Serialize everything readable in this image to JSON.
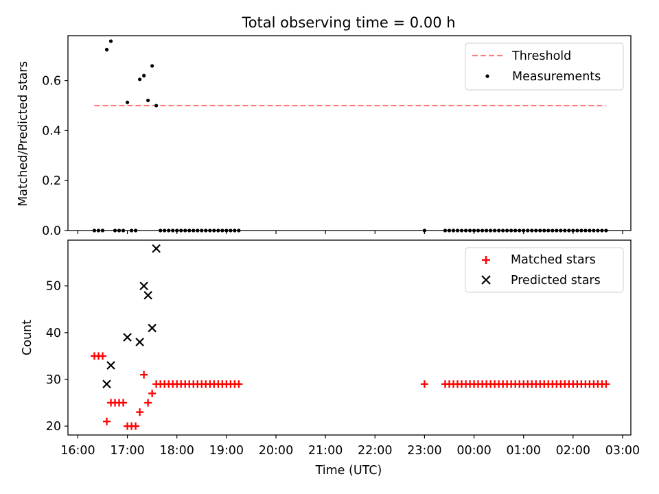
{
  "figure": {
    "title": "Total observing time = 0.00 h"
  },
  "chart_data": [
    {
      "type": "scatter",
      "panel": "top",
      "ylabel": "Matched/Predicted stars",
      "xlabel": "",
      "ylim": [
        0,
        0.78
      ],
      "yticks": [
        0.0,
        0.2,
        0.4,
        0.6
      ],
      "ytick_labels": [
        "0.0",
        "0.2",
        "0.4",
        "0.6"
      ],
      "grid": false,
      "legend_placement": "upper right",
      "colors": {
        "threshold": "#ff7f7f",
        "measurements": "#000000"
      },
      "threshold": {
        "name": "Threshold",
        "y": 0.5,
        "x_range": [
          "16:20",
          "26:40"
        ]
      },
      "series": [
        {
          "name": "Measurements",
          "x": [
            "16:20",
            "16:25",
            "16:30",
            "16:45",
            "16:50",
            "16:55",
            "17:05",
            "17:10",
            "17:40",
            "17:45",
            "17:50",
            "17:55",
            "18:00",
            "18:05",
            "18:10",
            "18:15",
            "18:20",
            "18:25",
            "18:30",
            "18:35",
            "18:40",
            "18:45",
            "18:50",
            "18:55",
            "19:00",
            "19:05",
            "19:10",
            "19:15",
            "23:00",
            "23:25",
            "23:30",
            "23:35",
            "23:40",
            "23:45",
            "23:50",
            "23:55",
            "24:00",
            "24:05",
            "24:10",
            "24:15",
            "24:20",
            "24:25",
            "24:30",
            "24:35",
            "24:40",
            "24:45",
            "24:50",
            "24:55",
            "25:00",
            "25:05",
            "25:10",
            "25:15",
            "25:20",
            "25:25",
            "25:30",
            "25:35",
            "25:40",
            "25:45",
            "25:50",
            "25:55",
            "26:00",
            "26:05",
            "26:10",
            "26:15",
            "26:20",
            "26:25",
            "26:30",
            "26:35",
            "26:40",
            "16:35",
            "16:40",
            "17:00",
            "17:15",
            "17:20",
            "17:25",
            "17:30",
            "17:35"
          ],
          "y": [
            0,
            0,
            0,
            0,
            0,
            0,
            0,
            0,
            0,
            0,
            0,
            0,
            0,
            0,
            0,
            0,
            0,
            0,
            0,
            0,
            0,
            0,
            0,
            0,
            0,
            0,
            0,
            0,
            0,
            0,
            0,
            0,
            0,
            0,
            0,
            0,
            0,
            0,
            0,
            0,
            0,
            0,
            0,
            0,
            0,
            0,
            0,
            0,
            0,
            0,
            0,
            0,
            0,
            0,
            0,
            0,
            0,
            0,
            0,
            0,
            0,
            0,
            0,
            0,
            0,
            0,
            0,
            0,
            0,
            0.724,
            0.758,
            0.513,
            0.605,
            0.62,
            0.521,
            0.659,
            0.5
          ]
        }
      ]
    },
    {
      "type": "scatter",
      "panel": "bottom",
      "ylabel": "Count",
      "xlabel": "Time (UTC)",
      "ylim": [
        18.1,
        59.8
      ],
      "yticks": [
        20,
        30,
        40,
        50
      ],
      "ytick_labels": [
        "20",
        "30",
        "40",
        "50"
      ],
      "x_range": [
        "15:48",
        "27:10"
      ],
      "xticks": [
        "16:00",
        "17:00",
        "18:00",
        "19:00",
        "20:00",
        "21:00",
        "22:00",
        "23:00",
        "24:00",
        "25:00",
        "26:00",
        "27:00"
      ],
      "xtick_labels": [
        "16:00",
        "17:00",
        "18:00",
        "19:00",
        "20:00",
        "21:00",
        "22:00",
        "23:00",
        "00:00",
        "01:00",
        "02:00",
        "03:00"
      ],
      "grid": false,
      "legend_placement": "upper right",
      "colors": {
        "matched": "#ff0000",
        "predicted": "#000000"
      },
      "series": [
        {
          "name": "Matched stars",
          "x": [
            "16:20",
            "16:25",
            "16:30",
            "16:35",
            "16:40",
            "16:45",
            "16:50",
            "16:55",
            "17:00",
            "17:05",
            "17:10",
            "17:15",
            "17:20",
            "17:25",
            "17:30",
            "17:35",
            "17:40",
            "17:45",
            "17:50",
            "17:55",
            "18:00",
            "18:05",
            "18:10",
            "18:15",
            "18:20",
            "18:25",
            "18:30",
            "18:35",
            "18:40",
            "18:45",
            "18:50",
            "18:55",
            "19:00",
            "19:05",
            "19:10",
            "19:15",
            "23:00",
            "23:25",
            "23:30",
            "23:35",
            "23:40",
            "23:45",
            "23:50",
            "23:55",
            "24:00",
            "24:05",
            "24:10",
            "24:15",
            "24:20",
            "24:25",
            "24:30",
            "24:35",
            "24:40",
            "24:45",
            "24:50",
            "24:55",
            "25:00",
            "25:05",
            "25:10",
            "25:15",
            "25:20",
            "25:25",
            "25:30",
            "25:35",
            "25:40",
            "25:45",
            "25:50",
            "25:55",
            "26:00",
            "26:05",
            "26:10",
            "26:15",
            "26:20",
            "26:25",
            "26:30",
            "26:35",
            "26:40"
          ],
          "y": [
            35,
            35,
            35,
            21,
            25,
            25,
            25,
            25,
            20,
            20,
            20,
            23,
            31,
            25,
            27,
            29,
            29,
            29,
            29,
            29,
            29,
            29,
            29,
            29,
            29,
            29,
            29,
            29,
            29,
            29,
            29,
            29,
            29,
            29,
            29,
            29,
            29,
            29,
            29,
            29,
            29,
            29,
            29,
            29,
            29,
            29,
            29,
            29,
            29,
            29,
            29,
            29,
            29,
            29,
            29,
            29,
            29,
            29,
            29,
            29,
            29,
            29,
            29,
            29,
            29,
            29,
            29,
            29,
            29,
            29,
            29,
            29,
            29,
            29,
            29,
            29,
            29
          ]
        },
        {
          "name": "Predicted stars",
          "x": [
            "16:35",
            "16:40",
            "17:00",
            "17:15",
            "17:20",
            "17:25",
            "17:30",
            "17:35"
          ],
          "y": [
            29,
            33,
            39,
            38,
            50,
            48,
            41,
            58
          ]
        }
      ]
    }
  ]
}
